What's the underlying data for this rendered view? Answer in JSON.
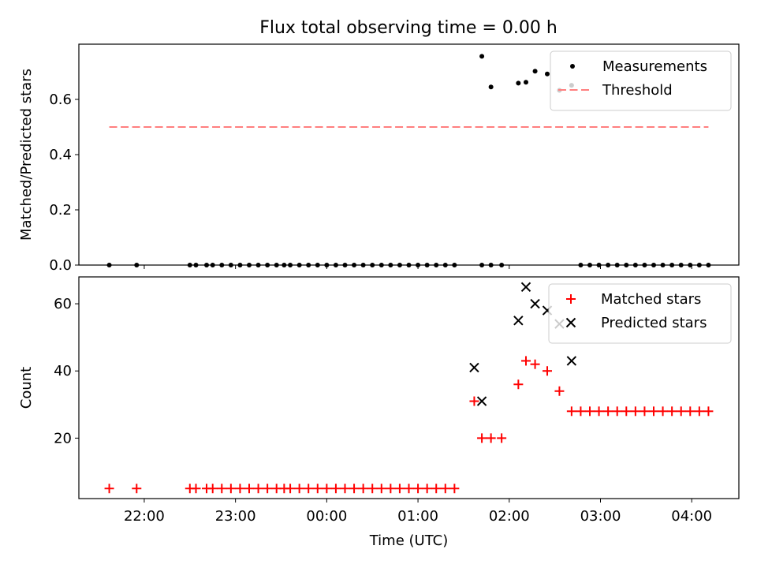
{
  "title": "Flux total observing time = 0.00 h",
  "chart_data": [
    {
      "type": "scatter",
      "ylabel": "Matched/Predicted stars",
      "xlabel": "",
      "ylim": [
        0,
        0.8
      ],
      "yticks": [
        0.0,
        0.2,
        0.4,
        0.6
      ],
      "yticklabels": [
        "0.0",
        "0.2",
        "0.4",
        "0.6"
      ],
      "x_axis": "time (HH:MM, UTC); times after 24:00 are on the next day",
      "xticks": [
        "22:00",
        "23:00",
        "24:00",
        "25:00",
        "26:00",
        "27:00",
        "28:00"
      ],
      "legend": "top-right",
      "series": [
        {
          "name": "Measurements",
          "marker": "dot",
          "color": "#000000",
          "x": [
            "21:37",
            "21:55",
            "22:30",
            "22:34",
            "22:41",
            "22:45",
            "22:51",
            "22:57",
            "23:03",
            "23:09",
            "23:15",
            "23:21",
            "23:27",
            "23:32",
            "23:36",
            "23:42",
            "23:48",
            "23:54",
            "24:00",
            "24:06",
            "24:12",
            "24:18",
            "24:24",
            "24:30",
            "24:36",
            "24:42",
            "24:48",
            "24:54",
            "25:00",
            "25:06",
            "25:12",
            "25:18",
            "25:24",
            "25:42",
            "25:48",
            "25:55",
            "26:06",
            "26:11",
            "26:17",
            "26:25",
            "26:33",
            "26:41",
            "26:47",
            "26:53",
            "26:59",
            "27:05",
            "27:11",
            "27:17",
            "27:23",
            "27:29",
            "27:35",
            "27:41",
            "27:47",
            "27:53",
            "27:59",
            "28:05",
            "28:11"
          ],
          "y": [
            0,
            0,
            0,
            0,
            0,
            0,
            0,
            0,
            0,
            0,
            0,
            0,
            0,
            0,
            0,
            0,
            0,
            0,
            0,
            0,
            0,
            0,
            0,
            0,
            0,
            0,
            0,
            0,
            0,
            0,
            0,
            0,
            0,
            0,
            0,
            0,
            0.659,
            0.662,
            0.702,
            0.692,
            0.633,
            0.651,
            0,
            0,
            0,
            0,
            0,
            0,
            0,
            0,
            0,
            0,
            0,
            0,
            0,
            0,
            0
          ]
        },
        {
          "name": "Threshold",
          "line": "dashed",
          "color": "#ff7f7f",
          "x": [
            "21:37",
            "28:11"
          ],
          "y": [
            0.5,
            0.5
          ]
        },
        {
          "marker": "dot",
          "color": "#000000",
          "x": [
            "25:42",
            "25:48"
          ],
          "y": [
            0.756,
            0.645
          ]
        }
      ]
    },
    {
      "type": "scatter",
      "ylabel": "Count",
      "xlabel": "Time (UTC)",
      "ylim": [
        2,
        68
      ],
      "yticks": [
        20,
        40,
        60
      ],
      "yticklabels": [
        "20",
        "40",
        "60"
      ],
      "xticks": [
        "22:00",
        "23:00",
        "24:00",
        "25:00",
        "26:00",
        "27:00",
        "28:00"
      ],
      "xticklabels": [
        "22:00",
        "23:00",
        "00:00",
        "01:00",
        "02:00",
        "03:00",
        "04:00"
      ],
      "legend": "top-right",
      "series": [
        {
          "name": "Matched stars",
          "marker": "plus",
          "color": "#ff0000",
          "x": [
            "21:37",
            "21:55",
            "22:30",
            "22:34",
            "22:41",
            "22:45",
            "22:51",
            "22:57",
            "23:03",
            "23:09",
            "23:15",
            "23:21",
            "23:27",
            "23:32",
            "23:36",
            "23:42",
            "23:48",
            "23:54",
            "24:00",
            "24:06",
            "24:12",
            "24:18",
            "24:24",
            "24:30",
            "24:36",
            "24:42",
            "24:48",
            "24:54",
            "25:00",
            "25:06",
            "25:12",
            "25:18",
            "25:24",
            "25:37",
            "25:42",
            "25:48",
            "25:55",
            "26:06",
            "26:11",
            "26:17",
            "26:25",
            "26:33",
            "26:41",
            "26:47",
            "26:53",
            "26:59",
            "27:05",
            "27:11",
            "27:17",
            "27:23",
            "27:29",
            "27:35",
            "27:41",
            "27:47",
            "27:53",
            "27:59",
            "28:05",
            "28:11"
          ],
          "y": [
            5,
            5,
            5,
            5,
            5,
            5,
            5,
            5,
            5,
            5,
            5,
            5,
            5,
            5,
            5,
            5,
            5,
            5,
            5,
            5,
            5,
            5,
            5,
            5,
            5,
            5,
            5,
            5,
            5,
            5,
            5,
            5,
            5,
            31,
            20,
            20,
            20,
            36,
            43,
            42,
            40,
            34,
            28,
            28,
            28,
            28,
            28,
            28,
            28,
            28,
            28,
            28,
            28,
            28,
            28,
            28,
            28,
            28
          ]
        },
        {
          "name": "Predicted stars",
          "marker": "x",
          "color": "#000000",
          "x": [
            "25:37",
            "25:42",
            "26:06",
            "26:11",
            "26:17",
            "26:25",
            "26:33",
            "26:41"
          ],
          "y": [
            41,
            31,
            55,
            65,
            60,
            58,
            54,
            43
          ]
        }
      ]
    }
  ]
}
